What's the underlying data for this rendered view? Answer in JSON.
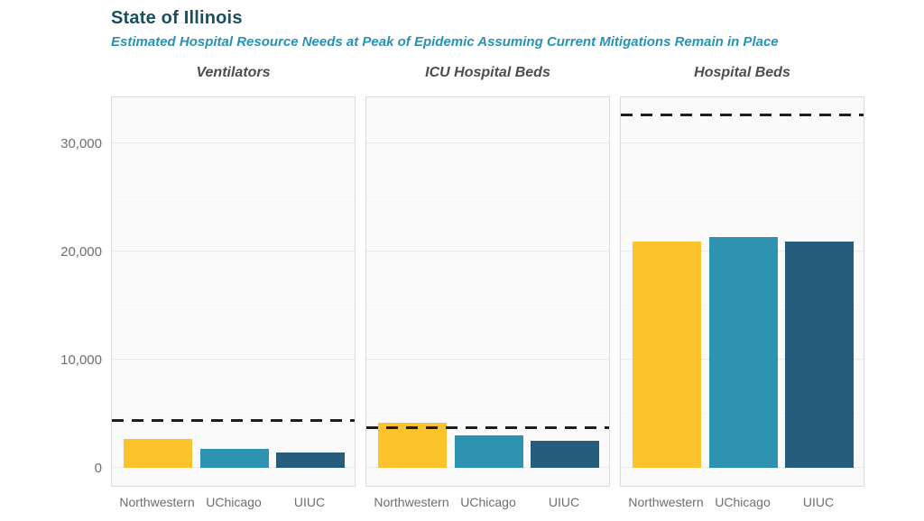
{
  "header": {
    "title": "State of Illinois",
    "subtitle": "Estimated Hospital Resource Needs at Peak of Epidemic Assuming Current Mitigations Remain in Place"
  },
  "colors": {
    "title_text": "#1C4E62",
    "subtitle_text": "#2892B5",
    "panel_title_text": "#4D4D4D",
    "axis_text": "#6E6E6E",
    "capacity_line": "#1E1E1E",
    "panel_background": "#FAFAFA",
    "panel_border": "#DBDBDB",
    "series_northwestern": "#FCC32D",
    "series_uchicago": "#2E93B1",
    "series_uiuc": "#265D7C"
  },
  "chart_data": {
    "type": "bar",
    "title": "State of Illinois",
    "subtitle": "Estimated Hospital Resource Needs at Peak of Epidemic Assuming Current Mitigations Remain in Place",
    "categories": [
      "Northwestern",
      "UChicago",
      "UIUC"
    ],
    "series_colors": [
      "#FCC32D",
      "#2E93B1",
      "#265D7C"
    ],
    "y_axis": {
      "ticks": [
        0,
        10000,
        20000,
        30000
      ],
      "tick_labels": [
        "0",
        "10,000",
        "20,000",
        "30,000"
      ],
      "minor_ticks": [
        5000,
        15000,
        25000
      ],
      "ylim": [
        0,
        34400
      ],
      "grid": "on"
    },
    "panels": [
      {
        "title": "Ventilators",
        "values": [
          2700,
          1750,
          1400
        ],
        "capacity_line": 4400
      },
      {
        "title": "ICU Hospital Beds",
        "values": [
          4200,
          3000,
          2500
        ],
        "capacity_line": 3700
      },
      {
        "title": "Hospital Beds",
        "values": [
          20900,
          21300,
          20900
        ],
        "capacity_line": 32600
      }
    ],
    "capacity_line_style": "dashed",
    "legend_position": "none"
  }
}
